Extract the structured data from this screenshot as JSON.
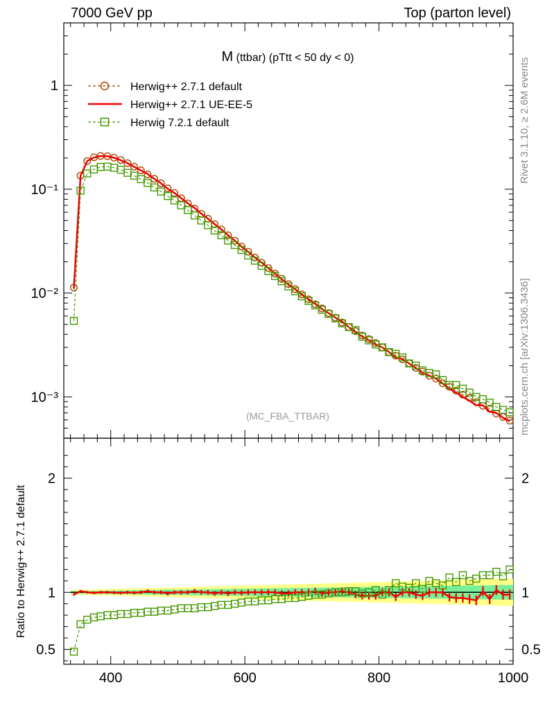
{
  "header": {
    "left": "7000 GeV pp",
    "right": "Top (parton level)"
  },
  "side_labels": {
    "rivet": "Rivet 3.1.10, ≥ 2.6M events",
    "mcplots": "mcplots.cern.ch [arXiv:1306.3436]"
  },
  "chart_data": [
    {
      "type": "line",
      "title_main": "M",
      "title_rest": " (ttbar) (pTtt < 50 dy < 0)",
      "watermark": "(MC_FBA_TTBAR)",
      "yscale": "log",
      "xlim": [
        330,
        1000
      ],
      "ylim": [
        0.0004,
        4
      ],
      "ytick_labels": [
        "10⁻³",
        "10⁻²",
        "10⁻¹",
        "1"
      ],
      "legend_position": "top-left",
      "colors": {
        "herwigpp_default": "#aa4400",
        "herwigpp_ueee5": "#ee0000",
        "herwig7": "#449900"
      },
      "series": [
        {
          "name": "Herwig++ 2.7.1 default",
          "style": "dashed-circle",
          "x": [
            345,
            355,
            365,
            375,
            385,
            395,
            405,
            415,
            425,
            435,
            445,
            455,
            465,
            475,
            485,
            495,
            505,
            515,
            525,
            535,
            545,
            555,
            565,
            575,
            585,
            595,
            605,
            615,
            625,
            635,
            645,
            655,
            665,
            675,
            685,
            695,
            705,
            715,
            725,
            735,
            745,
            755,
            765,
            775,
            785,
            795,
            805,
            815,
            825,
            835,
            845,
            855,
            865,
            875,
            885,
            895,
            905,
            915,
            925,
            935,
            945,
            955,
            965,
            975,
            985,
            995
          ],
          "y": [
            0.0113,
            0.135,
            0.187,
            0.203,
            0.209,
            0.208,
            0.201,
            0.191,
            0.178,
            0.165,
            0.152,
            0.139,
            0.126,
            0.114,
            0.102,
            0.092,
            0.082,
            0.073,
            0.065,
            0.058,
            0.052,
            0.046,
            0.041,
            0.036,
            0.032,
            0.028,
            0.025,
            0.022,
            0.0196,
            0.0174,
            0.0154,
            0.0137,
            0.0122,
            0.0109,
            0.0097,
            0.0087,
            0.0078,
            0.0071,
            0.0064,
            0.0058,
            0.0052,
            0.0047,
            0.0043,
            0.0039,
            0.0036,
            0.0033,
            0.003,
            0.0027,
            0.0025,
            0.0023,
            0.0021,
            0.0019,
            0.00175,
            0.0016,
            0.0015,
            0.00135,
            0.00125,
            0.00115,
            0.00105,
            0.00098,
            0.00089,
            0.00082,
            0.00077,
            0.00069,
            0.00064,
            0.00059
          ]
        },
        {
          "name": "Herwig++ 2.7.1 UE-EE-5",
          "style": "solid",
          "x": [
            345,
            355,
            365,
            375,
            385,
            395,
            405,
            415,
            425,
            435,
            445,
            455,
            465,
            475,
            485,
            495,
            505,
            515,
            525,
            535,
            545,
            555,
            565,
            575,
            585,
            595,
            605,
            615,
            625,
            635,
            645,
            655,
            665,
            675,
            685,
            695,
            705,
            715,
            725,
            735,
            745,
            755,
            765,
            775,
            785,
            795,
            805,
            815,
            825,
            835,
            845,
            855,
            865,
            875,
            885,
            895,
            905,
            915,
            925,
            935,
            945,
            955,
            965,
            975,
            985,
            995
          ],
          "y": [
            0.011,
            0.135,
            0.187,
            0.202,
            0.209,
            0.208,
            0.201,
            0.19,
            0.178,
            0.164,
            0.152,
            0.14,
            0.126,
            0.114,
            0.101,
            0.092,
            0.082,
            0.073,
            0.066,
            0.058,
            0.052,
            0.046,
            0.041,
            0.036,
            0.032,
            0.028,
            0.025,
            0.022,
            0.0197,
            0.0174,
            0.0154,
            0.0136,
            0.0121,
            0.0109,
            0.0097,
            0.0087,
            0.0079,
            0.007,
            0.0064,
            0.0058,
            0.0053,
            0.0047,
            0.0042,
            0.0038,
            0.0035,
            0.0032,
            0.003,
            0.0027,
            0.0024,
            0.0023,
            0.0021,
            0.0019,
            0.0017,
            0.0016,
            0.0015,
            0.00135,
            0.0012,
            0.0011,
            0.001,
            0.00092,
            0.00083,
            0.00083,
            0.00072,
            0.0007,
            0.00063,
            0.00058
          ]
        },
        {
          "name": "Herwig 7.2.1 default",
          "style": "dashed-square",
          "x": [
            345,
            355,
            365,
            375,
            385,
            395,
            405,
            415,
            425,
            435,
            445,
            455,
            465,
            475,
            485,
            495,
            505,
            515,
            525,
            535,
            545,
            555,
            565,
            575,
            585,
            595,
            605,
            615,
            625,
            635,
            645,
            655,
            665,
            675,
            685,
            695,
            705,
            715,
            725,
            735,
            745,
            755,
            765,
            775,
            785,
            795,
            805,
            815,
            825,
            835,
            845,
            855,
            865,
            875,
            885,
            895,
            905,
            915,
            925,
            935,
            945,
            955,
            965,
            975,
            985,
            995
          ],
          "y": [
            0.0054,
            0.097,
            0.142,
            0.155,
            0.164,
            0.165,
            0.161,
            0.154,
            0.144,
            0.135,
            0.125,
            0.115,
            0.104,
            0.095,
            0.086,
            0.078,
            0.07,
            0.063,
            0.056,
            0.05,
            0.045,
            0.04,
            0.036,
            0.032,
            0.029,
            0.026,
            0.023,
            0.0205,
            0.0183,
            0.0163,
            0.0146,
            0.013,
            0.0116,
            0.0104,
            0.0093,
            0.0084,
            0.0076,
            0.0069,
            0.0063,
            0.0057,
            0.0051,
            0.0047,
            0.0044,
            0.0038,
            0.0035,
            0.0032,
            0.003,
            0.0027,
            0.0026,
            0.0024,
            0.0021,
            0.002,
            0.0018,
            0.0017,
            0.00165,
            0.00145,
            0.0013,
            0.0013,
            0.0012,
            0.0011,
            0.001,
            0.00095,
            0.00088,
            0.0008,
            0.00075,
            0.00071
          ]
        }
      ]
    },
    {
      "type": "line",
      "ylabel": "Ratio to Herwig++ 2.7.1 default",
      "xlim": [
        330,
        1000
      ],
      "ylim": [
        0.37,
        2.35
      ],
      "xticks": [
        400,
        600,
        800,
        1000
      ],
      "yticks": [
        0.5,
        1,
        2
      ],
      "band_colors": {
        "stat": "#77ee99",
        "total": "#ffff88"
      },
      "series": [
        {
          "name": "Herwig++ 2.7.1 UE-EE-5",
          "style": "solid-errorbars",
          "x": [
            345,
            355,
            365,
            375,
            385,
            395,
            405,
            415,
            425,
            435,
            445,
            455,
            465,
            475,
            485,
            495,
            505,
            515,
            525,
            535,
            545,
            555,
            565,
            575,
            585,
            595,
            605,
            615,
            625,
            635,
            645,
            655,
            665,
            675,
            685,
            695,
            705,
            715,
            725,
            735,
            745,
            755,
            765,
            775,
            785,
            795,
            805,
            815,
            825,
            835,
            845,
            855,
            865,
            875,
            885,
            895,
            905,
            915,
            925,
            935,
            945,
            955,
            965,
            975,
            985,
            995
          ],
          "y": [
            0.98,
            1.01,
            1.0,
            0.995,
            1.0,
            1.0,
            0.998,
            0.995,
            1.0,
            0.996,
            1.0,
            1.01,
            1.0,
            1.0,
            0.99,
            1.0,
            1.0,
            1.0,
            1.01,
            1.0,
            1.0,
            0.99,
            1.0,
            0.99,
            1.0,
            0.995,
            1.0,
            1.0,
            1.0,
            1.0,
            1.0,
            0.99,
            0.99,
            1.0,
            1.0,
            1.0,
            1.01,
            0.99,
            1.0,
            1.0,
            1.01,
            1.0,
            0.98,
            0.97,
            0.97,
            0.97,
            1.0,
            1.0,
            0.96,
            1.0,
            1.0,
            0.98,
            0.97,
            1.0,
            1.0,
            1.0,
            0.96,
            0.95,
            0.95,
            0.94,
            0.93,
            1.01,
            0.94,
            1.02,
            0.98,
            0.98
          ]
        },
        {
          "name": "Herwig 7.2.1 default",
          "style": "dashed-square",
          "x": [
            345,
            355,
            365,
            375,
            385,
            395,
            405,
            415,
            425,
            435,
            445,
            455,
            465,
            475,
            485,
            495,
            505,
            515,
            525,
            535,
            545,
            555,
            565,
            575,
            585,
            595,
            605,
            615,
            625,
            635,
            645,
            655,
            665,
            675,
            685,
            695,
            705,
            715,
            725,
            735,
            745,
            755,
            765,
            775,
            785,
            795,
            805,
            815,
            825,
            835,
            845,
            855,
            865,
            875,
            885,
            895,
            905,
            915,
            925,
            935,
            945,
            955,
            965,
            975,
            985,
            995
          ],
          "y": [
            0.48,
            0.72,
            0.76,
            0.78,
            0.79,
            0.8,
            0.8,
            0.81,
            0.81,
            0.82,
            0.82,
            0.83,
            0.83,
            0.84,
            0.84,
            0.85,
            0.86,
            0.86,
            0.86,
            0.87,
            0.87,
            0.88,
            0.89,
            0.89,
            0.9,
            0.91,
            0.92,
            0.92,
            0.93,
            0.93,
            0.94,
            0.94,
            0.95,
            0.95,
            0.96,
            0.97,
            0.98,
            0.98,
            0.99,
            1.0,
            1.0,
            1.01,
            1.01,
            0.99,
            1.0,
            1.02,
            0.98,
            1.02,
            1.08,
            1.05,
            1.04,
            1.08,
            1.03,
            1.1,
            1.08,
            1.06,
            1.13,
            1.09,
            1.15,
            1.1,
            1.12,
            1.15,
            1.15,
            1.18,
            1.14,
            1.2
          ]
        }
      ]
    }
  ]
}
